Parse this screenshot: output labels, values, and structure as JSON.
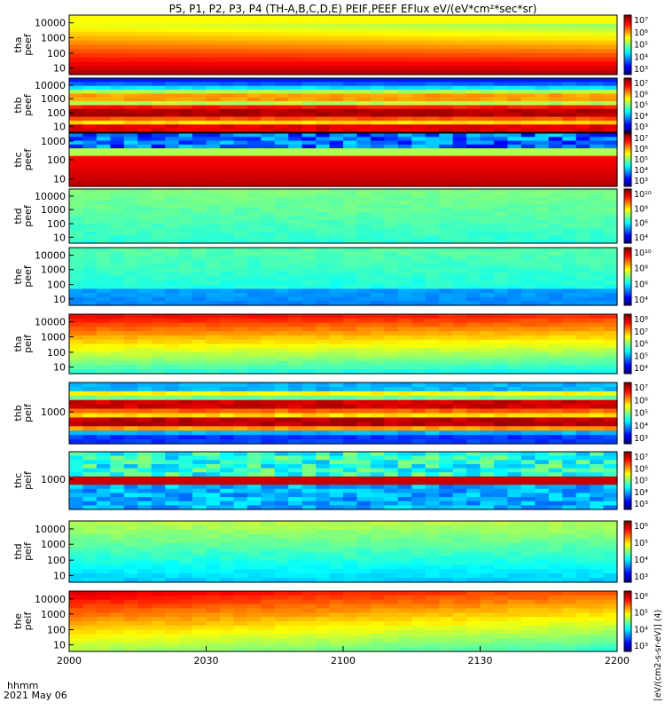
{
  "chart_data": {
    "type": "heatmap",
    "title": "P5, P1, P2, P3, P4 (TH-A,B,C,D,E) PEIF,PEEF EFlux eV/(eV*cm²*sec*sr)",
    "x_axis": {
      "label_top": "hhmm",
      "label_bottom": "2021 May 06",
      "range": [
        "2000",
        "2200"
      ],
      "ticks": [
        "2000",
        "2030",
        "2100",
        "2130",
        "2200"
      ]
    },
    "colorbar_unit_label": "[eV/(cm2-s-sr-eV)] (4)",
    "panels": [
      {
        "label": "tha\npeef",
        "yticks": [
          "10000",
          "1000",
          "100",
          "10"
        ],
        "cbar_ticks": [
          "10⁷",
          "10⁶",
          "10⁵",
          "10⁴",
          "10³"
        ],
        "pattern": "Electron flux high at low energy, decreasing with energy; red band 10–300 eV fading later"
      },
      {
        "label": "thb\npeef",
        "yticks": [
          "10000",
          "1000",
          "100",
          "10"
        ],
        "cbar_ticks": [
          "10⁷",
          "10⁶",
          "10⁵",
          "10⁴",
          "10³"
        ],
        "pattern": "Horizontal bands: dark blue at highest energy, yellow/red bands near 10–100 eV"
      },
      {
        "label": "thc\npeef",
        "yticks": [
          "1000",
          "100",
          "10"
        ],
        "cbar_ticks": [
          "10⁷",
          "10⁶",
          "10⁵",
          "10⁴",
          "10³"
        ],
        "pattern": "Noisy blue/black at top, red core below 100 eV"
      },
      {
        "label": "thd\npeef",
        "yticks": [
          "10000",
          "1000",
          "100",
          "10"
        ],
        "cbar_ticks": [
          "10¹⁰",
          "10⁸",
          "10⁶",
          "10⁴"
        ],
        "pattern": "Mostly cyan/green, uniform"
      },
      {
        "label": "the\npeef",
        "yticks": [
          "10000",
          "1000",
          "100",
          "10"
        ],
        "cbar_ticks": [
          "10¹⁰",
          "10⁸",
          "10⁶",
          "10⁴"
        ],
        "pattern": "Cyan/green with blue at low energy"
      },
      {
        "label": "tha\npeif",
        "yticks": [
          "10000",
          "1000",
          "100",
          "10"
        ],
        "cbar_ticks": [
          "10⁸",
          "10⁷",
          "10⁶",
          "10⁵",
          "10⁴"
        ],
        "pattern": "Ion flux red at highest energies, green/yellow lower"
      },
      {
        "label": "thb\npeif",
        "yticks": [
          "1000"
        ],
        "cbar_ticks": [
          "10⁷",
          "10⁶",
          "10⁵",
          "10⁴",
          "10³"
        ],
        "pattern": "Horizontal bands of red, orange, yellow, cyan and blue"
      },
      {
        "label": "thc\npeif",
        "yticks": [
          "1000"
        ],
        "cbar_ticks": [
          "10⁷",
          "10⁶",
          "10⁵",
          "10⁴",
          "10³"
        ],
        "pattern": "Noisy cyan/blue top, red band mid, blue lower"
      },
      {
        "label": "thd\npeif",
        "yticks": [
          "10000",
          "1000",
          "100",
          "10"
        ],
        "cbar_ticks": [
          "10⁶",
          "10⁵",
          "10⁴",
          "10³"
        ],
        "pattern": "Green with cyan/blue at low energy"
      },
      {
        "label": "the\npeif",
        "yticks": [
          "10000",
          "1000",
          "100",
          "10"
        ],
        "cbar_ticks": [
          "10⁶",
          "10⁵",
          "10⁴",
          "10³"
        ],
        "pattern": "Red/orange at top, yellow/green lower"
      }
    ]
  }
}
